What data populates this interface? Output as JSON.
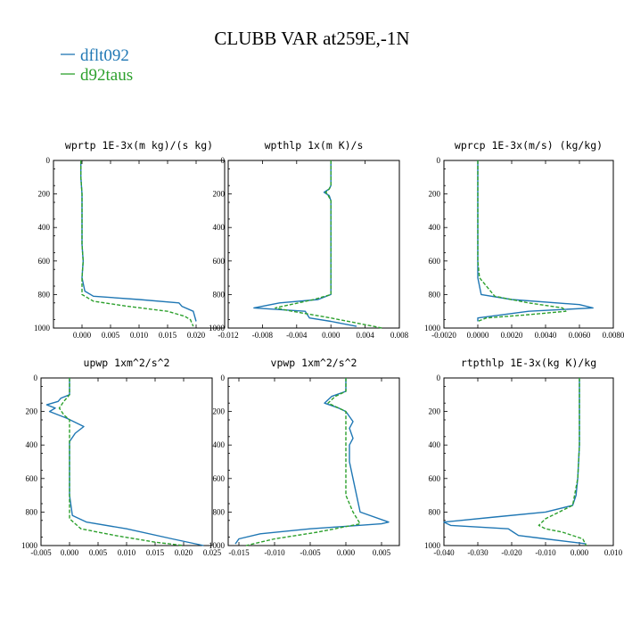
{
  "title": "CLUBB VAR at259E,-1N",
  "legend": [
    {
      "name": "dflt092",
      "color": "#1f77b4",
      "dash": "solid"
    },
    {
      "name": "d92taus",
      "color": "#2ca02c",
      "dash": "dashed"
    }
  ],
  "chart_data": [
    {
      "type": "line",
      "title": "wprtp  1E-3x(m kg)/(s kg)",
      "xlim": [
        -0.005,
        0.025
      ],
      "ylim": [
        1000,
        0
      ],
      "xticks": [
        0.0,
        0.005,
        0.01,
        0.015,
        0.02
      ],
      "xtick_labels": [
        "0.000",
        "0.005",
        "0.010",
        "0.015",
        "0.020"
      ],
      "yticks": [
        0,
        200,
        400,
        600,
        800,
        1000
      ],
      "series": [
        {
          "name": "dflt092",
          "x": [
            -0.0002,
            -0.0002,
            0.0,
            0.0,
            0.0,
            0.0,
            0.0002,
            0.0,
            0.0005,
            0.002,
            0.01,
            0.017,
            0.0175,
            0.0195,
            0.02
          ],
          "y": [
            0,
            100,
            200,
            300,
            400,
            500,
            600,
            700,
            780,
            810,
            830,
            850,
            870,
            900,
            960
          ]
        },
        {
          "name": "d92taus",
          "x": [
            -0.0002,
            -0.0002,
            0.0,
            0.0,
            0.0,
            0.0,
            0.0002,
            0.0,
            0.0,
            0.002,
            0.008,
            0.015,
            0.018,
            0.019,
            0.0195
          ],
          "y": [
            0,
            100,
            200,
            300,
            400,
            500,
            600,
            700,
            800,
            840,
            870,
            900,
            930,
            950,
            990
          ]
        }
      ]
    },
    {
      "type": "line",
      "title": "wpthlp  1x(m K)/s",
      "xlim": [
        -0.012,
        0.008
      ],
      "ylim": [
        1000,
        0
      ],
      "xticks": [
        -0.012,
        -0.008,
        -0.004,
        0.0,
        0.004,
        0.008
      ],
      "xtick_labels": [
        "-0.012",
        "-0.008",
        "-0.004",
        "0.000",
        "0.004",
        "0.008"
      ],
      "yticks": [
        0,
        200,
        400,
        600,
        800,
        1000
      ],
      "series": [
        {
          "name": "dflt092",
          "x": [
            0.0,
            0.0,
            0.0,
            0.0,
            -0.0002,
            -0.0008,
            -0.0002,
            0.0,
            0.0,
            0.0,
            0.0,
            -0.0015,
            -0.006,
            -0.009,
            -0.003,
            -0.0025,
            0.0,
            0.003
          ],
          "y": [
            0,
            80,
            120,
            150,
            170,
            190,
            210,
            240,
            400,
            600,
            800,
            830,
            850,
            880,
            900,
            940,
            960,
            990
          ]
        },
        {
          "name": "d92taus",
          "x": [
            0.0,
            0.0,
            0.0,
            -0.0002,
            -0.0006,
            -0.0003,
            0.0,
            0.0,
            0.0,
            0.0,
            -0.002,
            -0.0065,
            -0.0045,
            0.0,
            0.006
          ],
          "y": [
            0,
            80,
            150,
            170,
            190,
            210,
            240,
            400,
            600,
            800,
            830,
            880,
            900,
            940,
            1000
          ]
        }
      ]
    },
    {
      "type": "line",
      "title": "wprcp  1E-3x(m/s) (kg/kg)",
      "xlim": [
        -0.002,
        0.008
      ],
      "ylim": [
        1000,
        0
      ],
      "xticks": [
        -0.002,
        0.0,
        0.002,
        0.004,
        0.006,
        0.008
      ],
      "xtick_labels": [
        "-0.0020",
        "0.0000",
        "0.0020",
        "0.0040",
        "0.0060",
        "0.0080"
      ],
      "yticks": [
        0,
        200,
        400,
        600,
        800,
        1000
      ],
      "series": [
        {
          "name": "dflt092",
          "x": [
            0.0,
            0.0,
            0.0,
            0.0,
            0.0,
            0.0,
            0.0,
            0.0002,
            0.002,
            0.006,
            0.0068,
            0.003,
            0.0,
            0.0
          ],
          "y": [
            0,
            200,
            400,
            420,
            440,
            600,
            700,
            800,
            830,
            860,
            880,
            900,
            940,
            960
          ]
        },
        {
          "name": "d92taus",
          "x": [
            0.0,
            0.0,
            0.0,
            0.0,
            0.0,
            0.0001,
            0.001,
            0.003,
            0.005,
            0.0052,
            0.003,
            0.0005,
            0.0
          ],
          "y": [
            0,
            200,
            400,
            420,
            600,
            700,
            810,
            850,
            880,
            900,
            920,
            940,
            960
          ]
        }
      ]
    },
    {
      "type": "line",
      "title": "upwp  1xm^2/s^2",
      "xlim": [
        -0.005,
        0.025
      ],
      "ylim": [
        1000,
        0
      ],
      "xticks": [
        -0.005,
        0.0,
        0.005,
        0.01,
        0.015,
        0.02,
        0.025
      ],
      "xtick_labels": [
        "-0.005",
        "0.000",
        "0.005",
        "0.010",
        "0.015",
        "0.020",
        "0.025"
      ],
      "yticks": [
        0,
        200,
        400,
        600,
        800,
        1000
      ],
      "series": [
        {
          "name": "dflt092",
          "x": [
            0.0,
            0.0,
            0.0,
            -0.0015,
            -0.002,
            -0.004,
            -0.0025,
            -0.0035,
            -0.0005,
            0.0025,
            0.001,
            0.0,
            0.0,
            0.0,
            0.0,
            0.0005,
            0.003,
            0.01,
            0.018,
            0.0235
          ],
          "y": [
            0,
            80,
            100,
            120,
            140,
            160,
            180,
            200,
            240,
            290,
            330,
            380,
            450,
            500,
            700,
            820,
            860,
            900,
            960,
            1000
          ]
        },
        {
          "name": "d92taus",
          "x": [
            0.0,
            0.0,
            0.0,
            -0.001,
            -0.0018,
            -0.001,
            0.0,
            0.0,
            0.0,
            0.0,
            0.0,
            0.002,
            0.008,
            0.015,
            0.02
          ],
          "y": [
            0,
            80,
            100,
            140,
            180,
            220,
            250,
            300,
            450,
            600,
            840,
            900,
            940,
            980,
            1000
          ]
        }
      ]
    },
    {
      "type": "line",
      "title": "vpwp  1xm^2/s^2",
      "xlim": [
        -0.0165,
        0.0075
      ],
      "ylim": [
        1000,
        0
      ],
      "xticks": [
        -0.015,
        -0.01,
        -0.005,
        0.0,
        0.005
      ],
      "xtick_labels": [
        "-0.015",
        "-0.010",
        "-0.005",
        "0.000",
        "0.005"
      ],
      "yticks": [
        0,
        200,
        400,
        600,
        800,
        1000
      ],
      "series": [
        {
          "name": "dflt092",
          "x": [
            0.0,
            0.0,
            -0.002,
            -0.003,
            -0.001,
            0.0,
            0.001,
            0.0005,
            0.001,
            0.0005,
            0.0005,
            0.001,
            0.002,
            0.006,
            0.005,
            -0.005,
            -0.012,
            -0.015,
            -0.0155
          ],
          "y": [
            0,
            80,
            110,
            150,
            180,
            200,
            260,
            300,
            360,
            400,
            500,
            600,
            800,
            860,
            870,
            900,
            930,
            960,
            990
          ]
        },
        {
          "name": "d92taus",
          "x": [
            0.0,
            0.0,
            -0.0015,
            -0.0025,
            -0.001,
            0.0,
            0.0,
            0.0,
            0.0,
            0.001,
            0.002,
            -0.004,
            -0.01,
            -0.014
          ],
          "y": [
            0,
            80,
            110,
            150,
            180,
            200,
            300,
            500,
            700,
            800,
            870,
            920,
            960,
            1000
          ]
        }
      ]
    },
    {
      "type": "line",
      "title": "rtpthlp  1E-3x(kg K)/kg",
      "xlim": [
        -0.04,
        0.01
      ],
      "ylim": [
        1000,
        0
      ],
      "xticks": [
        -0.04,
        -0.03,
        -0.02,
        -0.01,
        0.0,
        0.01
      ],
      "xtick_labels": [
        "-0.040",
        "-0.030",
        "-0.020",
        "-0.010",
        "0.000",
        "0.010"
      ],
      "yticks": [
        0,
        200,
        400,
        600,
        800,
        1000
      ],
      "series": [
        {
          "name": "dflt092",
          "x": [
            0.0,
            0.0,
            -0.0005,
            -0.001,
            -0.002,
            -0.01,
            -0.025,
            -0.04,
            -0.038,
            -0.021,
            -0.0195,
            -0.018,
            -0.01,
            0.002
          ],
          "y": [
            0,
            400,
            600,
            700,
            760,
            800,
            830,
            860,
            880,
            900,
            920,
            940,
            960,
            990
          ]
        },
        {
          "name": "d92taus",
          "x": [
            0.0,
            0.0,
            -0.0005,
            -0.002,
            -0.006,
            -0.01,
            -0.012,
            -0.01,
            -0.005,
            0.001,
            0.002
          ],
          "y": [
            0,
            400,
            600,
            760,
            800,
            840,
            880,
            900,
            920,
            960,
            1000
          ]
        }
      ]
    }
  ]
}
